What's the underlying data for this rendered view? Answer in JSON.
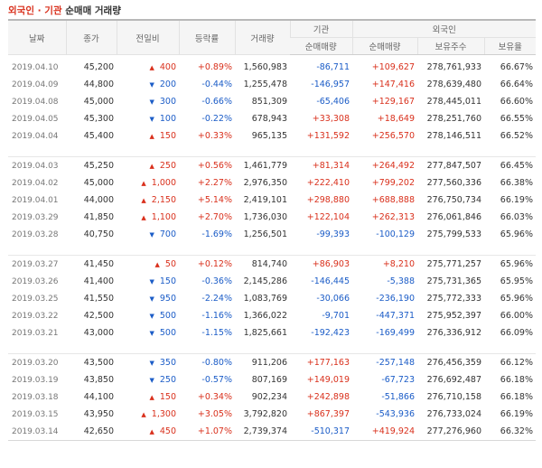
{
  "title": {
    "part1": "외국인 · 기관",
    "part2": " 순매매 거래량"
  },
  "headers": {
    "date": "날짜",
    "close": "종가",
    "change": "전일비",
    "rate": "등락률",
    "volume": "거래량",
    "inst": "기관",
    "inst_net": "순매매량",
    "foreign": "외국인",
    "foreign_net": "순매매량",
    "foreign_hold": "보유주수",
    "foreign_ratio": "보유율"
  },
  "colors": {
    "up": "#d9301c",
    "down": "#1b5cc7"
  },
  "groups": [
    [
      {
        "date": "2019.04.10",
        "close": "45,200",
        "dir": "up",
        "change": "400",
        "rate": "+0.89%",
        "volume": "1,560,983",
        "inst": "-86,711",
        "foreign": "+109,627",
        "hold": "278,761,933",
        "ratio": "66.67%"
      },
      {
        "date": "2019.04.09",
        "close": "44,800",
        "dir": "down",
        "change": "200",
        "rate": "-0.44%",
        "volume": "1,255,478",
        "inst": "-146,957",
        "foreign": "+147,416",
        "hold": "278,639,480",
        "ratio": "66.64%"
      },
      {
        "date": "2019.04.08",
        "close": "45,000",
        "dir": "down",
        "change": "300",
        "rate": "-0.66%",
        "volume": "851,309",
        "inst": "-65,406",
        "foreign": "+129,167",
        "hold": "278,445,011",
        "ratio": "66.60%"
      },
      {
        "date": "2019.04.05",
        "close": "45,300",
        "dir": "down",
        "change": "100",
        "rate": "-0.22%",
        "volume": "678,943",
        "inst": "+33,308",
        "foreign": "+18,649",
        "hold": "278,251,760",
        "ratio": "66.55%"
      },
      {
        "date": "2019.04.04",
        "close": "45,400",
        "dir": "up",
        "change": "150",
        "rate": "+0.33%",
        "volume": "965,135",
        "inst": "+131,592",
        "foreign": "+256,570",
        "hold": "278,146,511",
        "ratio": "66.52%"
      }
    ],
    [
      {
        "date": "2019.04.03",
        "close": "45,250",
        "dir": "up",
        "change": "250",
        "rate": "+0.56%",
        "volume": "1,461,779",
        "inst": "+81,314",
        "foreign": "+264,492",
        "hold": "277,847,507",
        "ratio": "66.45%"
      },
      {
        "date": "2019.04.02",
        "close": "45,000",
        "dir": "up",
        "change": "1,000",
        "rate": "+2.27%",
        "volume": "2,976,350",
        "inst": "+222,410",
        "foreign": "+799,202",
        "hold": "277,560,336",
        "ratio": "66.38%"
      },
      {
        "date": "2019.04.01",
        "close": "44,000",
        "dir": "up",
        "change": "2,150",
        "rate": "+5.14%",
        "volume": "2,419,101",
        "inst": "+298,880",
        "foreign": "+688,888",
        "hold": "276,750,734",
        "ratio": "66.19%"
      },
      {
        "date": "2019.03.29",
        "close": "41,850",
        "dir": "up",
        "change": "1,100",
        "rate": "+2.70%",
        "volume": "1,736,030",
        "inst": "+122,104",
        "foreign": "+262,313",
        "hold": "276,061,846",
        "ratio": "66.03%"
      },
      {
        "date": "2019.03.28",
        "close": "40,750",
        "dir": "down",
        "change": "700",
        "rate": "-1.69%",
        "volume": "1,256,501",
        "inst": "-99,393",
        "foreign": "-100,129",
        "hold": "275,799,533",
        "ratio": "65.96%"
      }
    ],
    [
      {
        "date": "2019.03.27",
        "close": "41,450",
        "dir": "up",
        "change": "50",
        "rate": "+0.12%",
        "volume": "814,740",
        "inst": "+86,903",
        "foreign": "+8,210",
        "hold": "275,771,257",
        "ratio": "65.96%"
      },
      {
        "date": "2019.03.26",
        "close": "41,400",
        "dir": "down",
        "change": "150",
        "rate": "-0.36%",
        "volume": "2,145,286",
        "inst": "-146,445",
        "foreign": "-5,388",
        "hold": "275,731,365",
        "ratio": "65.95%"
      },
      {
        "date": "2019.03.25",
        "close": "41,550",
        "dir": "down",
        "change": "950",
        "rate": "-2.24%",
        "volume": "1,083,769",
        "inst": "-30,066",
        "foreign": "-236,190",
        "hold": "275,772,333",
        "ratio": "65.96%"
      },
      {
        "date": "2019.03.22",
        "close": "42,500",
        "dir": "down",
        "change": "500",
        "rate": "-1.16%",
        "volume": "1,366,022",
        "inst": "-9,701",
        "foreign": "-447,371",
        "hold": "275,952,397",
        "ratio": "66.00%"
      },
      {
        "date": "2019.03.21",
        "close": "43,000",
        "dir": "down",
        "change": "500",
        "rate": "-1.15%",
        "volume": "1,825,661",
        "inst": "-192,423",
        "foreign": "-169,499",
        "hold": "276,336,912",
        "ratio": "66.09%"
      }
    ],
    [
      {
        "date": "2019.03.20",
        "close": "43,500",
        "dir": "down",
        "change": "350",
        "rate": "-0.80%",
        "volume": "911,206",
        "inst": "+177,163",
        "foreign": "-257,148",
        "hold": "276,456,359",
        "ratio": "66.12%"
      },
      {
        "date": "2019.03.19",
        "close": "43,850",
        "dir": "down",
        "change": "250",
        "rate": "-0.57%",
        "volume": "807,169",
        "inst": "+149,019",
        "foreign": "-67,723",
        "hold": "276,692,487",
        "ratio": "66.18%"
      },
      {
        "date": "2019.03.18",
        "close": "44,100",
        "dir": "up",
        "change": "150",
        "rate": "+0.34%",
        "volume": "902,234",
        "inst": "+242,898",
        "foreign": "-51,866",
        "hold": "276,710,158",
        "ratio": "66.18%"
      },
      {
        "date": "2019.03.15",
        "close": "43,950",
        "dir": "up",
        "change": "1,300",
        "rate": "+3.05%",
        "volume": "3,792,820",
        "inst": "+867,397",
        "foreign": "-543,936",
        "hold": "276,733,024",
        "ratio": "66.19%"
      },
      {
        "date": "2019.03.14",
        "close": "42,650",
        "dir": "up",
        "change": "450",
        "rate": "+1.07%",
        "volume": "2,739,374",
        "inst": "-510,317",
        "foreign": "+419,924",
        "hold": "277,276,960",
        "ratio": "66.32%"
      }
    ]
  ]
}
